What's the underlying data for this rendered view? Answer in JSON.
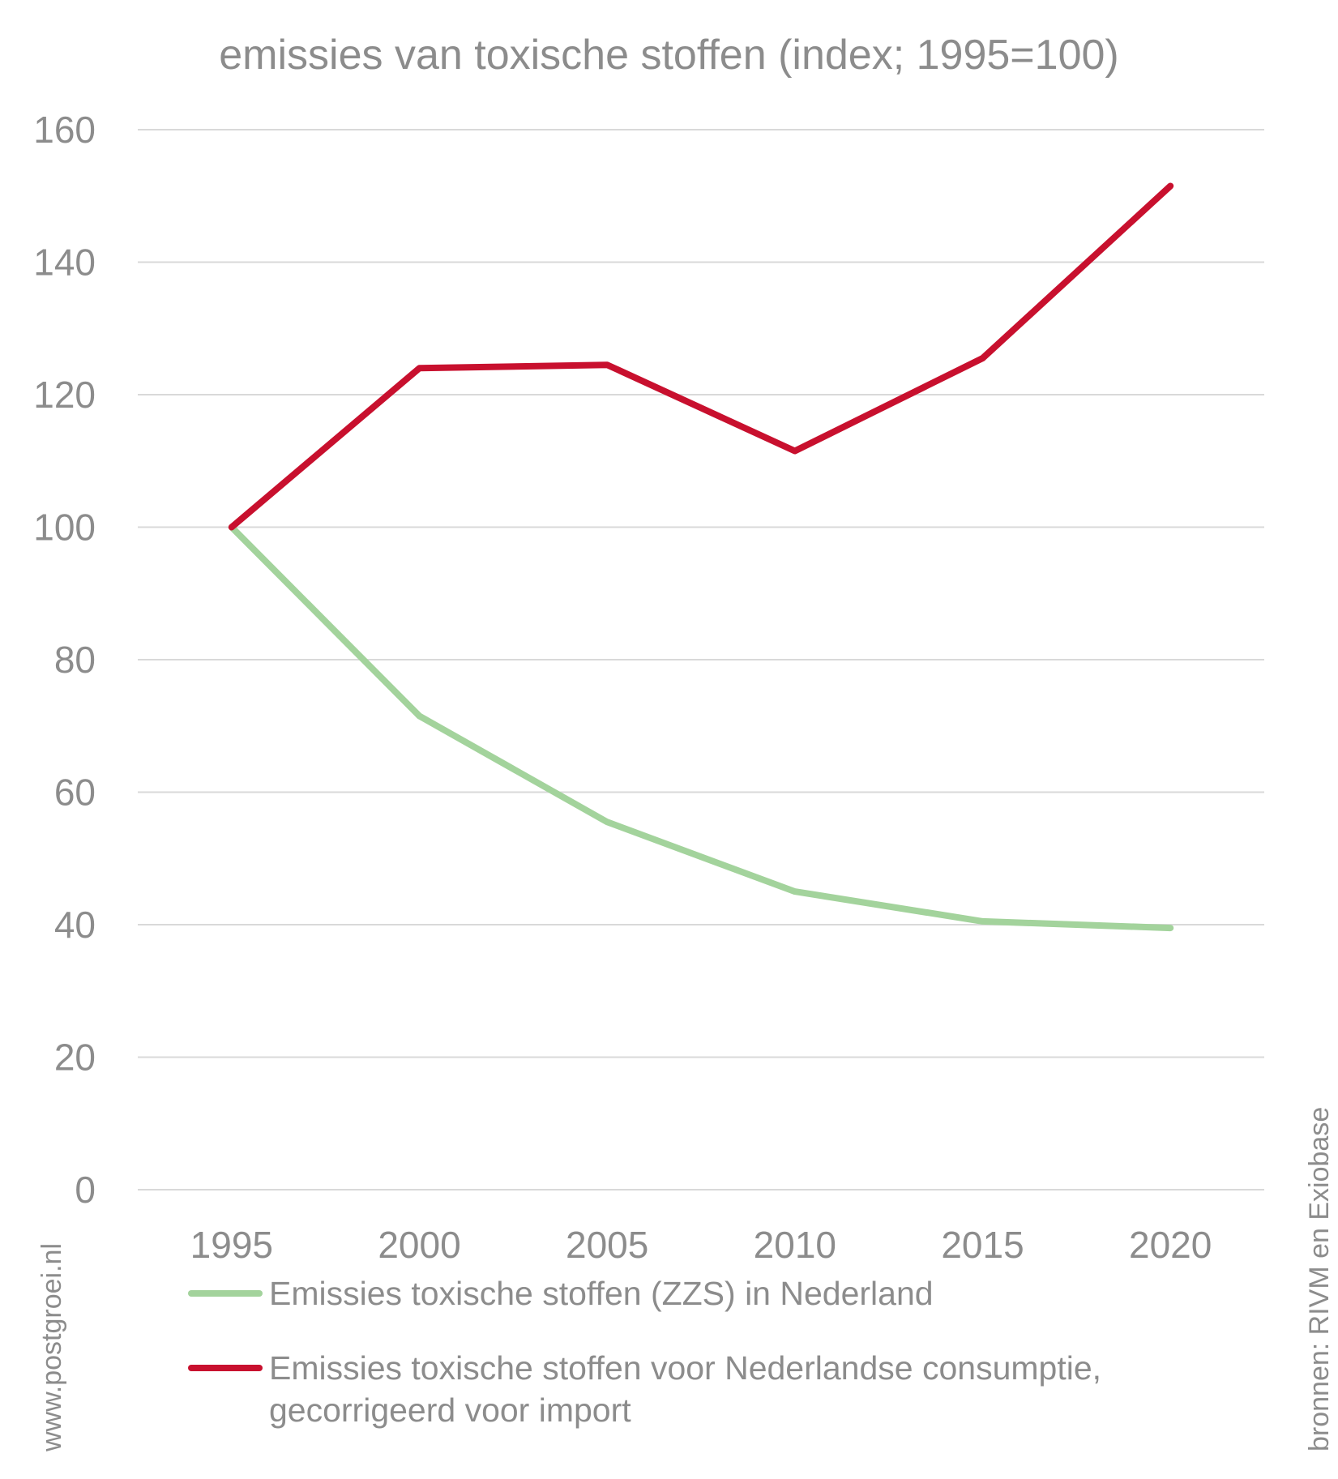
{
  "chart_data": {
    "type": "line",
    "title": "emissies van toxische stoffen (index; 1995=100)",
    "x": [
      "1995",
      "2000",
      "2005",
      "2010",
      "2015",
      "2020"
    ],
    "ylim": [
      0,
      160
    ],
    "yticks": [
      "0",
      "20",
      "40",
      "60",
      "80",
      "100",
      "120",
      "140",
      "160"
    ],
    "grid": true,
    "legend": "bottom",
    "series": [
      {
        "name": "Emissies toxische stoffen (ZZS) in Nederland",
        "color": "#a3d39c",
        "values": [
          100,
          71.5,
          55.5,
          45,
          40.5,
          39.5
        ]
      },
      {
        "name": "Emissies toxische stoffen voor Nederlandse consumptie,\ngecorrigeerd voor import",
        "color": "#c8102e",
        "values": [
          100,
          124,
          124.5,
          111.5,
          125.5,
          151.5
        ]
      }
    ]
  },
  "credits": {
    "left": "www.postgroei.nl",
    "right": "bronnen: RIVM en Exiobase"
  }
}
